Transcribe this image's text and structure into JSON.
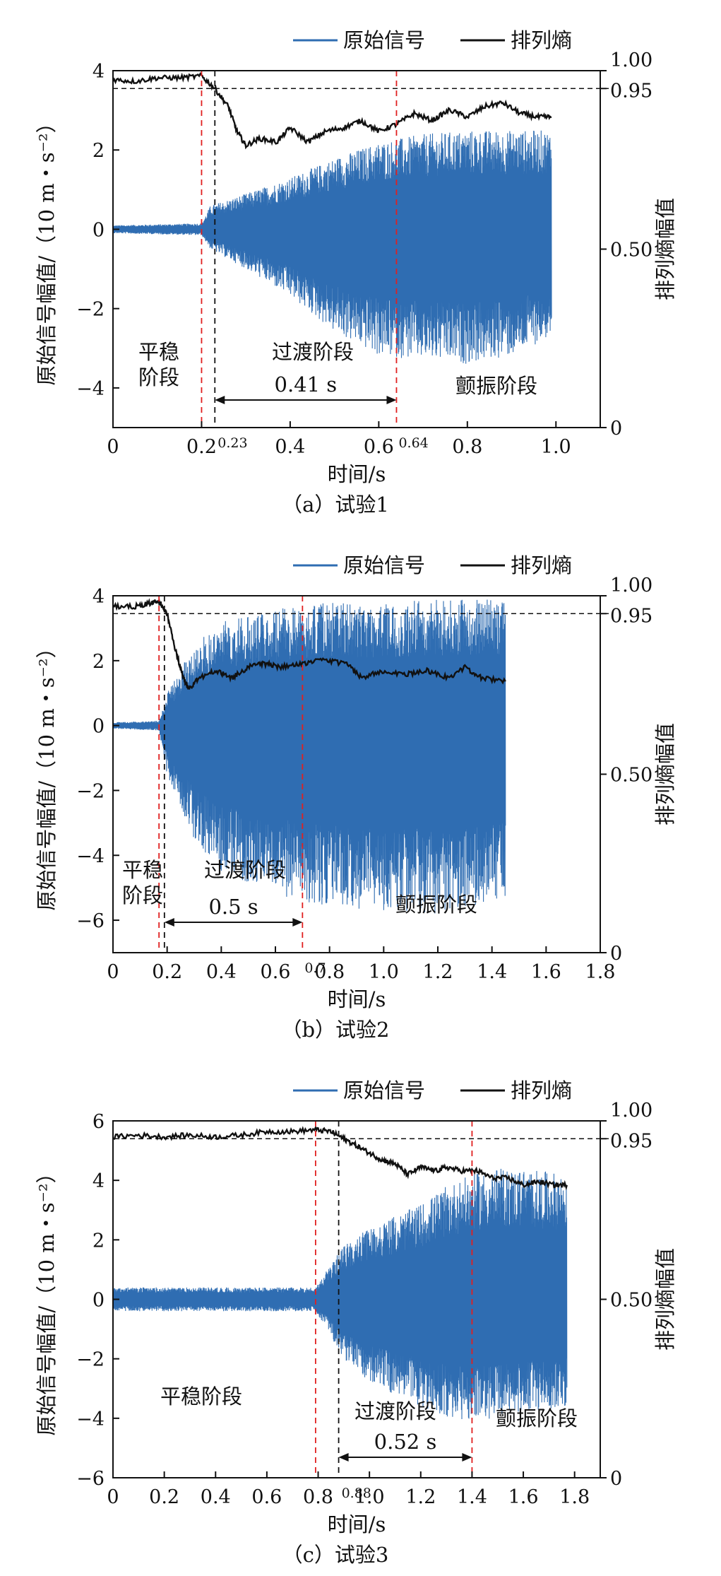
{
  "chart_data": [
    {
      "type": "line",
      "caption": "（a）试验1",
      "xlabel": "时间/s",
      "ylabel_left": "原始信号幅值/（10 m・s⁻²）",
      "ylabel_right": "排列熵幅值",
      "xlim": [
        0,
        1.1
      ],
      "ylim_left": [
        -5,
        4
      ],
      "ylim_right": [
        0,
        1
      ],
      "xticks": [
        0,
        0.2,
        0.4,
        0.6,
        0.8,
        1.0
      ],
      "xtick_labels": [
        "0",
        "0.2",
        "0.4",
        "0.6",
        "0.8",
        "1.0"
      ],
      "yticks_left": [
        -4,
        -2,
        0,
        2,
        4
      ],
      "yticks_right": [
        0,
        0.5,
        0.95,
        1.0
      ],
      "ytick_labels_right": [
        "0",
        "0.50",
        "0.95",
        "1.00"
      ],
      "threshold": 0.95,
      "legend": [
        "原始信号",
        "排列熵"
      ],
      "series_colors": {
        "signal": "#2f6db2",
        "entropy": "#111111"
      },
      "red_lines": [
        0.2,
        0.64
      ],
      "black_line": 0.23,
      "annotations": {
        "t_mark_1": "0.23",
        "t_mark_2": "0.64",
        "stage_1": [
          "平稳",
          "阶段"
        ],
        "stage_2": "过渡阶段",
        "stage_3": "颤振阶段",
        "duration": "0.41 s"
      },
      "signal_envelope": [
        [
          0,
          0.1,
          -0.1
        ],
        [
          0.2,
          0.15,
          -0.15
        ],
        [
          0.22,
          0.6,
          -0.5
        ],
        [
          0.3,
          0.9,
          -1.0
        ],
        [
          0.4,
          1.3,
          -1.7
        ],
        [
          0.5,
          1.8,
          -2.6
        ],
        [
          0.6,
          2.2,
          -3.2
        ],
        [
          0.7,
          2.4,
          -3.3
        ],
        [
          0.8,
          2.5,
          -3.4
        ],
        [
          0.9,
          2.5,
          -3.2
        ],
        [
          0.99,
          2.5,
          -2.7
        ]
      ],
      "entropy": [
        [
          0,
          0.975
        ],
        [
          0.05,
          0.97
        ],
        [
          0.1,
          0.98
        ],
        [
          0.15,
          0.98
        ],
        [
          0.2,
          0.985
        ],
        [
          0.23,
          0.95
        ],
        [
          0.26,
          0.9
        ],
        [
          0.28,
          0.83
        ],
        [
          0.3,
          0.79
        ],
        [
          0.33,
          0.81
        ],
        [
          0.37,
          0.8
        ],
        [
          0.4,
          0.84
        ],
        [
          0.44,
          0.8
        ],
        [
          0.48,
          0.83
        ],
        [
          0.52,
          0.84
        ],
        [
          0.56,
          0.86
        ],
        [
          0.6,
          0.83
        ],
        [
          0.64,
          0.85
        ],
        [
          0.68,
          0.88
        ],
        [
          0.72,
          0.86
        ],
        [
          0.76,
          0.89
        ],
        [
          0.8,
          0.87
        ],
        [
          0.84,
          0.9
        ],
        [
          0.88,
          0.91
        ],
        [
          0.92,
          0.88
        ],
        [
          0.96,
          0.87
        ],
        [
          0.99,
          0.87
        ]
      ]
    },
    {
      "type": "line",
      "caption": "（b）试验2",
      "xlabel": "时间/s",
      "ylabel_left": "原始信号幅值/（10 m・s⁻²）",
      "ylabel_right": "排列熵幅值",
      "xlim": [
        0,
        1.8
      ],
      "ylim_left": [
        -7,
        4
      ],
      "ylim_right": [
        0,
        1
      ],
      "xticks": [
        0,
        0.2,
        0.4,
        0.6,
        0.8,
        1.0,
        1.2,
        1.4,
        1.6,
        1.8
      ],
      "xtick_labels": [
        "0",
        "0.2",
        "0.4",
        "0.6",
        "0.8",
        "1.0",
        "1.2",
        "1.4",
        "1.6",
        "1.8"
      ],
      "yticks_left": [
        -6,
        -4,
        -2,
        0,
        2,
        4
      ],
      "yticks_right": [
        0,
        0.5,
        0.95,
        1.0
      ],
      "ytick_labels_right": [
        "0",
        "0.50",
        "0.95",
        "1.00"
      ],
      "threshold": 0.95,
      "legend": [
        "原始信号",
        "排列熵"
      ],
      "series_colors": {
        "signal": "#2f6db2",
        "entropy": "#111111"
      },
      "red_lines": [
        0.17,
        0.7
      ],
      "black_line": 0.19,
      "annotations": {
        "t_mark_1": "",
        "t_mark_2": "0.7",
        "stage_1": [
          "平稳",
          "阶段"
        ],
        "stage_2": "过渡阶段",
        "stage_3": "颤振阶段",
        "duration": "0.5 s"
      },
      "signal_envelope": [
        [
          0,
          0.1,
          -0.1
        ],
        [
          0.17,
          0.15,
          -0.15
        ],
        [
          0.2,
          1.0,
          -1.5
        ],
        [
          0.3,
          2.5,
          -3.5
        ],
        [
          0.4,
          3.2,
          -4.5
        ],
        [
          0.6,
          3.6,
          -5.2
        ],
        [
          0.8,
          3.8,
          -5.6
        ],
        [
          1.0,
          3.8,
          -5.7
        ],
        [
          1.2,
          3.9,
          -5.8
        ],
        [
          1.45,
          3.9,
          -5.4
        ]
      ],
      "entropy": [
        [
          0,
          0.97
        ],
        [
          0.08,
          0.97
        ],
        [
          0.14,
          0.98
        ],
        [
          0.17,
          0.985
        ],
        [
          0.2,
          0.95
        ],
        [
          0.23,
          0.85
        ],
        [
          0.26,
          0.77
        ],
        [
          0.28,
          0.74
        ],
        [
          0.32,
          0.77
        ],
        [
          0.38,
          0.79
        ],
        [
          0.44,
          0.77
        ],
        [
          0.5,
          0.8
        ],
        [
          0.56,
          0.81
        ],
        [
          0.62,
          0.8
        ],
        [
          0.7,
          0.81
        ],
        [
          0.78,
          0.82
        ],
        [
          0.86,
          0.81
        ],
        [
          0.92,
          0.77
        ],
        [
          1.0,
          0.79
        ],
        [
          1.08,
          0.78
        ],
        [
          1.16,
          0.79
        ],
        [
          1.24,
          0.77
        ],
        [
          1.3,
          0.8
        ],
        [
          1.36,
          0.77
        ],
        [
          1.45,
          0.76
        ]
      ]
    },
    {
      "type": "line",
      "caption": "（c）试验3",
      "xlabel": "时间/s",
      "ylabel_left": "原始信号幅值/（10 m・s⁻²）",
      "ylabel_right": "排列熵幅值",
      "xlim": [
        0,
        1.9
      ],
      "ylim_left": [
        -6,
        6
      ],
      "ylim_right": [
        0,
        1
      ],
      "xticks": [
        0,
        0.2,
        0.4,
        0.6,
        0.8,
        1.0,
        1.2,
        1.4,
        1.6,
        1.8
      ],
      "xtick_labels": [
        "0",
        "0.2",
        "0.4",
        "0.6",
        "0.8",
        "1.0",
        "1.2",
        "1.4",
        "1.6",
        "1.8"
      ],
      "yticks_left": [
        -6,
        -4,
        -2,
        0,
        2,
        4,
        6
      ],
      "yticks_right": [
        0,
        0.5,
        0.95,
        1.0
      ],
      "ytick_labels_right": [
        "0",
        "0.50",
        "0.95",
        "1.00"
      ],
      "threshold": 0.95,
      "legend": [
        "原始信号",
        "排列熵"
      ],
      "series_colors": {
        "signal": "#2f6db2",
        "entropy": "#111111"
      },
      "red_lines": [
        0.79,
        1.4
      ],
      "black_line": 0.88,
      "annotations": {
        "t_mark_1": "0.88",
        "t_mark_2": "",
        "stage_1": [
          "平稳阶段"
        ],
        "stage_2": "过渡阶段",
        "stage_3": "颤振阶段",
        "duration": "0.52 s"
      },
      "signal_envelope": [
        [
          0,
          0.4,
          -0.4
        ],
        [
          0.79,
          0.4,
          -0.4
        ],
        [
          0.82,
          0.8,
          -0.8
        ],
        [
          0.9,
          1.8,
          -2.0
        ],
        [
          1.0,
          2.4,
          -2.8
        ],
        [
          1.2,
          3.2,
          -3.6
        ],
        [
          1.3,
          3.8,
          -4.0
        ],
        [
          1.4,
          4.2,
          -4.1
        ],
        [
          1.5,
          4.4,
          -4.0
        ],
        [
          1.6,
          4.4,
          -3.8
        ],
        [
          1.77,
          4.2,
          -3.6
        ]
      ],
      "entropy": [
        [
          0,
          0.955
        ],
        [
          0.1,
          0.96
        ],
        [
          0.2,
          0.955
        ],
        [
          0.3,
          0.96
        ],
        [
          0.4,
          0.955
        ],
        [
          0.5,
          0.96
        ],
        [
          0.6,
          0.97
        ],
        [
          0.7,
          0.97
        ],
        [
          0.79,
          0.975
        ],
        [
          0.85,
          0.97
        ],
        [
          0.9,
          0.95
        ],
        [
          0.95,
          0.93
        ],
        [
          1.0,
          0.91
        ],
        [
          1.05,
          0.89
        ],
        [
          1.1,
          0.88
        ],
        [
          1.15,
          0.85
        ],
        [
          1.2,
          0.87
        ],
        [
          1.26,
          0.86
        ],
        [
          1.3,
          0.87
        ],
        [
          1.36,
          0.86
        ],
        [
          1.42,
          0.86
        ],
        [
          1.48,
          0.84
        ],
        [
          1.54,
          0.84
        ],
        [
          1.6,
          0.82
        ],
        [
          1.66,
          0.83
        ],
        [
          1.72,
          0.82
        ],
        [
          1.77,
          0.82
        ]
      ]
    }
  ]
}
